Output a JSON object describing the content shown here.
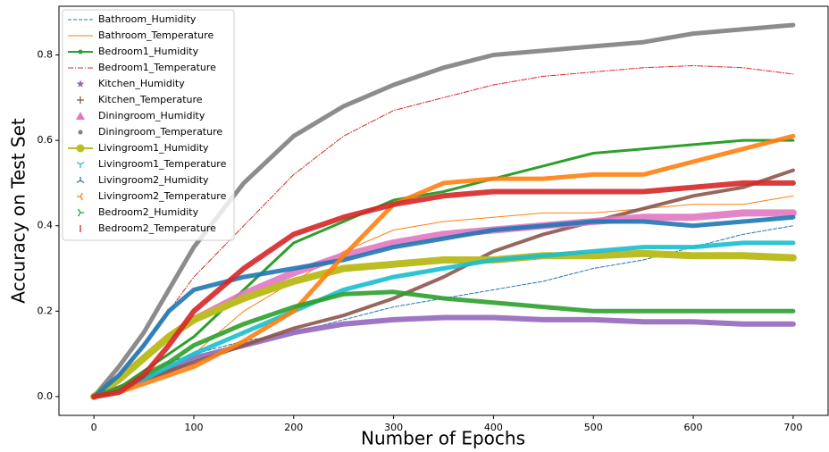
{
  "chart_data": {
    "type": "line",
    "x_label": "Number of Epochs",
    "y_label": "Accuracy on Test Set",
    "x": [
      0,
      25,
      50,
      75,
      100,
      150,
      200,
      250,
      300,
      350,
      400,
      450,
      500,
      550,
      600,
      650,
      700
    ],
    "xlim": [
      -35,
      735
    ],
    "xticks": [
      0,
      100,
      200,
      300,
      400,
      500,
      600,
      700
    ],
    "ylim": [
      -0.044,
      0.914
    ],
    "yticks": [
      {
        "value": 0,
        "label": "0.0"
      },
      {
        "value": 0.2,
        "label": "0.2"
      },
      {
        "value": 0.4,
        "label": "0.4"
      },
      {
        "value": 0.6,
        "label": "0.6"
      },
      {
        "value": 0.8,
        "label": "0.8"
      }
    ],
    "legend": "upper left",
    "series": [
      {
        "name": "Bathroom_Humidity",
        "color": "#1f77b4",
        "line_style": "dashed",
        "line_width": 1,
        "marker": "none",
        "values": [
          0,
          0.02,
          0.05,
          0.08,
          0.1,
          0.13,
          0.15,
          0.18,
          0.21,
          0.23,
          0.25,
          0.27,
          0.3,
          0.32,
          0.35,
          0.38,
          0.4
        ]
      },
      {
        "name": "Bathroom_Temperature",
        "color": "#ff7f0e",
        "line_style": "solid",
        "line_width": 1,
        "marker": "none",
        "values": [
          0,
          0.01,
          0.04,
          0.07,
          0.1,
          0.2,
          0.27,
          0.34,
          0.39,
          0.41,
          0.42,
          0.43,
          0.43,
          0.44,
          0.45,
          0.45,
          0.47
        ]
      },
      {
        "name": "Bedroom1_Humidity",
        "color": "#2ca02c",
        "line_style": "solid",
        "line_width": 3,
        "marker": "dot",
        "values": [
          0,
          0.02,
          0.06,
          0.1,
          0.14,
          0.25,
          0.36,
          0.41,
          0.46,
          0.48,
          0.51,
          0.54,
          0.57,
          0.58,
          0.59,
          0.6,
          0.6
        ]
      },
      {
        "name": "Bedroom1_Temperature",
        "color": "#d62728",
        "line_style": "dashdot",
        "line_width": 1,
        "marker": "none",
        "values": [
          0,
          0.05,
          0.12,
          0.2,
          0.28,
          0.4,
          0.52,
          0.61,
          0.67,
          0.7,
          0.73,
          0.75,
          0.76,
          0.77,
          0.775,
          0.77,
          0.755
        ]
      },
      {
        "name": "Kitchen_Humidity",
        "color": "#9467bd",
        "line_style": "none",
        "line_width": 6,
        "marker": "star",
        "values": [
          0,
          0.02,
          0.04,
          0.06,
          0.09,
          0.12,
          0.15,
          0.17,
          0.18,
          0.185,
          0.185,
          0.18,
          0.18,
          0.175,
          0.175,
          0.17,
          0.17
        ]
      },
      {
        "name": "Kitchen_Temperature",
        "color": "#8c564b",
        "line_style": "none",
        "line_width": 4,
        "marker": "plus",
        "values": [
          0,
          0.02,
          0.04,
          0.06,
          0.08,
          0.12,
          0.16,
          0.19,
          0.23,
          0.28,
          0.34,
          0.38,
          0.41,
          0.44,
          0.47,
          0.49,
          0.53
        ]
      },
      {
        "name": "Diningroom_Humidity",
        "color": "#e377c2",
        "line_style": "none",
        "line_width": 8,
        "marker": "triangle",
        "values": [
          0,
          0.04,
          0.09,
          0.14,
          0.18,
          0.24,
          0.29,
          0.33,
          0.36,
          0.38,
          0.39,
          0.4,
          0.41,
          0.42,
          0.42,
          0.43,
          0.43
        ]
      },
      {
        "name": "Diningroom_Temperature",
        "color": "#7f7f7f",
        "line_style": "none",
        "line_width": 5,
        "marker": "dot",
        "values": [
          0,
          0.07,
          0.15,
          0.25,
          0.35,
          0.5,
          0.61,
          0.68,
          0.73,
          0.77,
          0.8,
          0.81,
          0.82,
          0.83,
          0.85,
          0.86,
          0.87
        ]
      },
      {
        "name": "Livingroom1_Humidity",
        "color": "#bcbd22",
        "line_style": "solid",
        "line_width": 8,
        "marker": "circle",
        "values": [
          0,
          0.04,
          0.09,
          0.14,
          0.18,
          0.23,
          0.27,
          0.3,
          0.31,
          0.32,
          0.32,
          0.33,
          0.33,
          0.335,
          0.33,
          0.33,
          0.325
        ]
      },
      {
        "name": "Livingroom1_Temperature",
        "color": "#17becf",
        "line_style": "none",
        "line_width": 5,
        "marker": "tri_down",
        "values": [
          0,
          0.01,
          0.04,
          0.07,
          0.1,
          0.15,
          0.2,
          0.25,
          0.28,
          0.3,
          0.32,
          0.33,
          0.34,
          0.35,
          0.35,
          0.36,
          0.36
        ]
      },
      {
        "name": "Livingroom2_Humidity",
        "color": "#1f77b4",
        "line_style": "none",
        "line_width": 5,
        "marker": "tri_up",
        "values": [
          0,
          0.05,
          0.12,
          0.2,
          0.25,
          0.28,
          0.3,
          0.32,
          0.35,
          0.37,
          0.39,
          0.4,
          0.41,
          0.41,
          0.4,
          0.41,
          0.42
        ]
      },
      {
        "name": "Livingroom2_Temperature",
        "color": "#ff7f0e",
        "line_style": "none",
        "line_width": 5,
        "marker": "tri_left",
        "values": [
          0,
          0.01,
          0.03,
          0.05,
          0.07,
          0.13,
          0.2,
          0.33,
          0.45,
          0.5,
          0.51,
          0.51,
          0.52,
          0.52,
          0.55,
          0.58,
          0.61
        ]
      },
      {
        "name": "Bedroom2_Humidity",
        "color": "#2ca02c",
        "line_style": "none",
        "line_width": 5,
        "marker": "tri_right",
        "values": [
          0,
          0.02,
          0.05,
          0.08,
          0.12,
          0.17,
          0.21,
          0.24,
          0.245,
          0.23,
          0.22,
          0.21,
          0.2,
          0.2,
          0.2,
          0.2,
          0.2
        ]
      },
      {
        "name": "Bedroom2_Temperature",
        "color": "#d62728",
        "line_style": "none",
        "line_width": 6,
        "marker": "vline",
        "values": [
          0,
          0.01,
          0.05,
          0.12,
          0.2,
          0.3,
          0.38,
          0.42,
          0.45,
          0.47,
          0.48,
          0.48,
          0.48,
          0.48,
          0.49,
          0.5,
          0.5
        ]
      }
    ]
  }
}
